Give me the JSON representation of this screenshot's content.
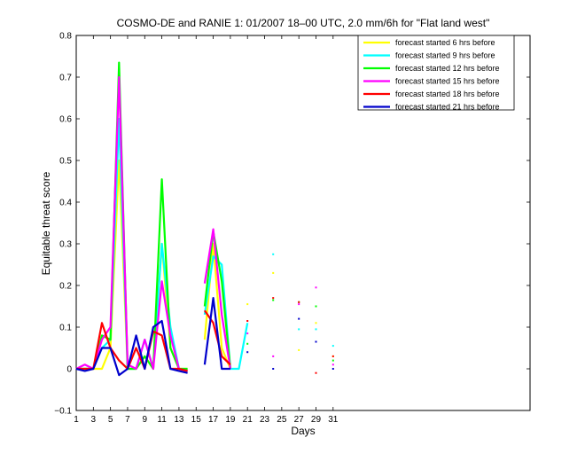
{
  "chart_data": {
    "type": "line",
    "title": "COSMO-DE and RANIE 1: 01/2007 18–00 UTC, 2.0 mm/6h for \"Flat land west\"",
    "xlabel": "Days",
    "ylabel": "Equitable threat score",
    "xlim": [
      1,
      54
    ],
    "ylim": [
      -0.1,
      0.8
    ],
    "xticks": [
      1,
      3,
      5,
      7,
      9,
      11,
      13,
      15,
      17,
      19,
      21,
      23,
      25,
      27,
      29,
      31
    ],
    "yticks": [
      -0.1,
      0,
      0.1,
      0.2,
      0.3,
      0.4,
      0.5,
      0.6,
      0.7,
      0.8
    ],
    "ytick_labels": [
      "−0.1",
      "0",
      "0.1",
      "0.2",
      "0.3",
      "0.4",
      "0.5",
      "0.6",
      "0.7",
      "0.8"
    ],
    "grid": false,
    "legend_position": "top-right",
    "series": [
      {
        "name": "forecast started 6 hrs before",
        "color": "#ffff00",
        "values": [
          null,
          0.0,
          0.0,
          0.0,
          0.0,
          0.05,
          0.5,
          0.0,
          0.0,
          0.03,
          0.0,
          0.3,
          0.05,
          0.0,
          0.0,
          null,
          0.07,
          0.3,
          0.05,
          0.0,
          null,
          0.155,
          null,
          null,
          0.23,
          null,
          null,
          0.045,
          null,
          0.11,
          null,
          0.03
        ]
      },
      {
        "name": "forecast started 9 hrs before",
        "color": "#00ffff",
        "values": [
          null,
          0.0,
          0.0,
          0.0,
          0.05,
          0.07,
          0.6,
          0.0,
          0.0,
          0.07,
          0.0,
          0.3,
          0.1,
          0.0,
          -0.005,
          null,
          0.13,
          0.27,
          0.25,
          0.0,
          0.0,
          0.11,
          null,
          null,
          0.275,
          null,
          null,
          0.095,
          null,
          0.095,
          null,
          0.055
        ]
      },
      {
        "name": "forecast started 12 hrs before",
        "color": "#00ff00",
        "values": [
          null,
          0.0,
          0.0,
          0.0,
          0.08,
          0.07,
          0.735,
          0.0,
          0.0,
          0.03,
          0.0,
          0.455,
          0.05,
          0.0,
          0.0,
          null,
          0.15,
          0.33,
          0.21,
          0.0,
          null,
          0.06,
          null,
          null,
          0.165,
          null,
          null,
          0.16,
          null,
          0.15,
          null,
          0.02
        ]
      },
      {
        "name": "forecast started 15 hrs before",
        "color": "#ff00ff",
        "values": [
          null,
          0.0,
          0.01,
          0.0,
          0.07,
          0.1,
          0.7,
          0.01,
          0.0,
          0.07,
          0.0,
          0.21,
          0.08,
          0.0,
          -0.005,
          null,
          0.205,
          0.335,
          0.13,
          0.0,
          null,
          0.085,
          null,
          null,
          0.03,
          null,
          null,
          0.155,
          null,
          0.195,
          null,
          0.01
        ]
      },
      {
        "name": "forecast started 18 hrs before",
        "color": "#ff0000",
        "values": [
          null,
          0.0,
          0.0,
          0.0,
          0.11,
          0.05,
          0.02,
          0.0,
          0.05,
          0.0,
          0.09,
          0.08,
          0.0,
          0.0,
          -0.005,
          null,
          0.14,
          0.11,
          0.03,
          0.01,
          null,
          0.115,
          null,
          null,
          0.17,
          null,
          null,
          0.16,
          null,
          -0.01,
          null,
          0.03
        ]
      },
      {
        "name": "forecast started 21 hrs before",
        "color": "#0000cc",
        "values": [
          null,
          0.0,
          -0.005,
          0.0,
          0.05,
          0.05,
          -0.015,
          0.0,
          0.08,
          0.0,
          0.1,
          0.115,
          0.0,
          -0.005,
          -0.01,
          null,
          0.01,
          0.17,
          0.0,
          0.0,
          null,
          0.04,
          null,
          null,
          0.0,
          null,
          null,
          0.12,
          null,
          0.065,
          null,
          0.0
        ]
      }
    ]
  }
}
